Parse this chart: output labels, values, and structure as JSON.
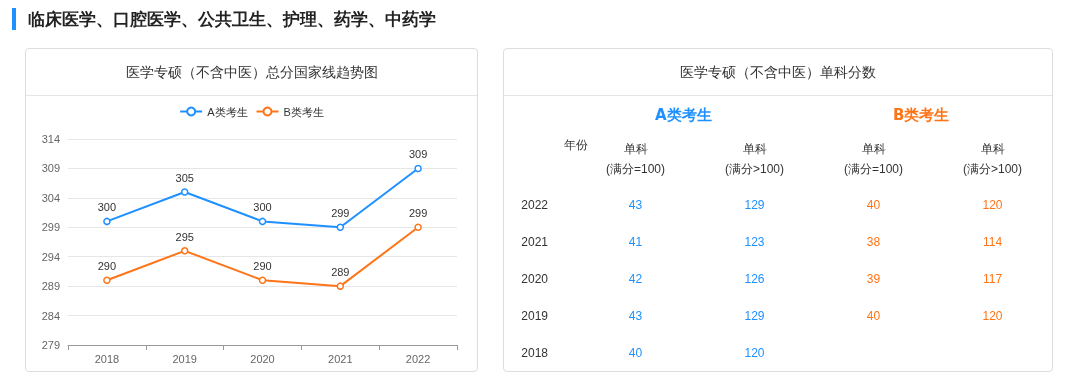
{
  "chart_data": [
    {
      "type": "line",
      "title": "医学专硕（不含中医）总分国家线趋势图",
      "annotations": [
        "临床医学、口腔医学、公共卫生、护理、药学、中药学"
      ],
      "categories": [
        "2018",
        "2019",
        "2020",
        "2021",
        "2022"
      ],
      "series": [
        {
          "name": "A类考生",
          "color": "#1e90ff",
          "values": [
            300,
            305,
            300,
            299,
            309
          ]
        },
        {
          "name": "B类考生",
          "color": "#ff7417",
          "values": [
            290,
            295,
            290,
            289,
            299
          ]
        }
      ],
      "ylim": [
        279,
        314
      ],
      "yticks": [
        279,
        284,
        289,
        294,
        299,
        304,
        309,
        314
      ],
      "grid": "y",
      "legend": "top",
      "marker": "circle",
      "data_labels": true
    },
    {
      "type": "heatmap",
      "title": "医学专硕（不含中医）单科分数",
      "annotations": [
        "A类考生",
        "B类考生"
      ],
      "ylabel": "年份",
      "categories": [
        "单科\n(满分=100)",
        "单科\n(满分>100)",
        "单科\n(满分=100)",
        "单科\n(满分>100)"
      ],
      "colors": [
        "#1e90ff",
        "#1e90ff",
        "#ff7417",
        "#ff7417"
      ],
      "y_categories": [
        "2022",
        "2021",
        "2020",
        "2019",
        "2018"
      ],
      "data_labels": true,
      "cells": [
        [
          43,
          129,
          40,
          120
        ],
        [
          41,
          123,
          38,
          114
        ],
        [
          42,
          126,
          39,
          117
        ],
        [
          43,
          129,
          40,
          120
        ],
        [
          40,
          120,
          null,
          null
        ]
      ]
    }
  ]
}
